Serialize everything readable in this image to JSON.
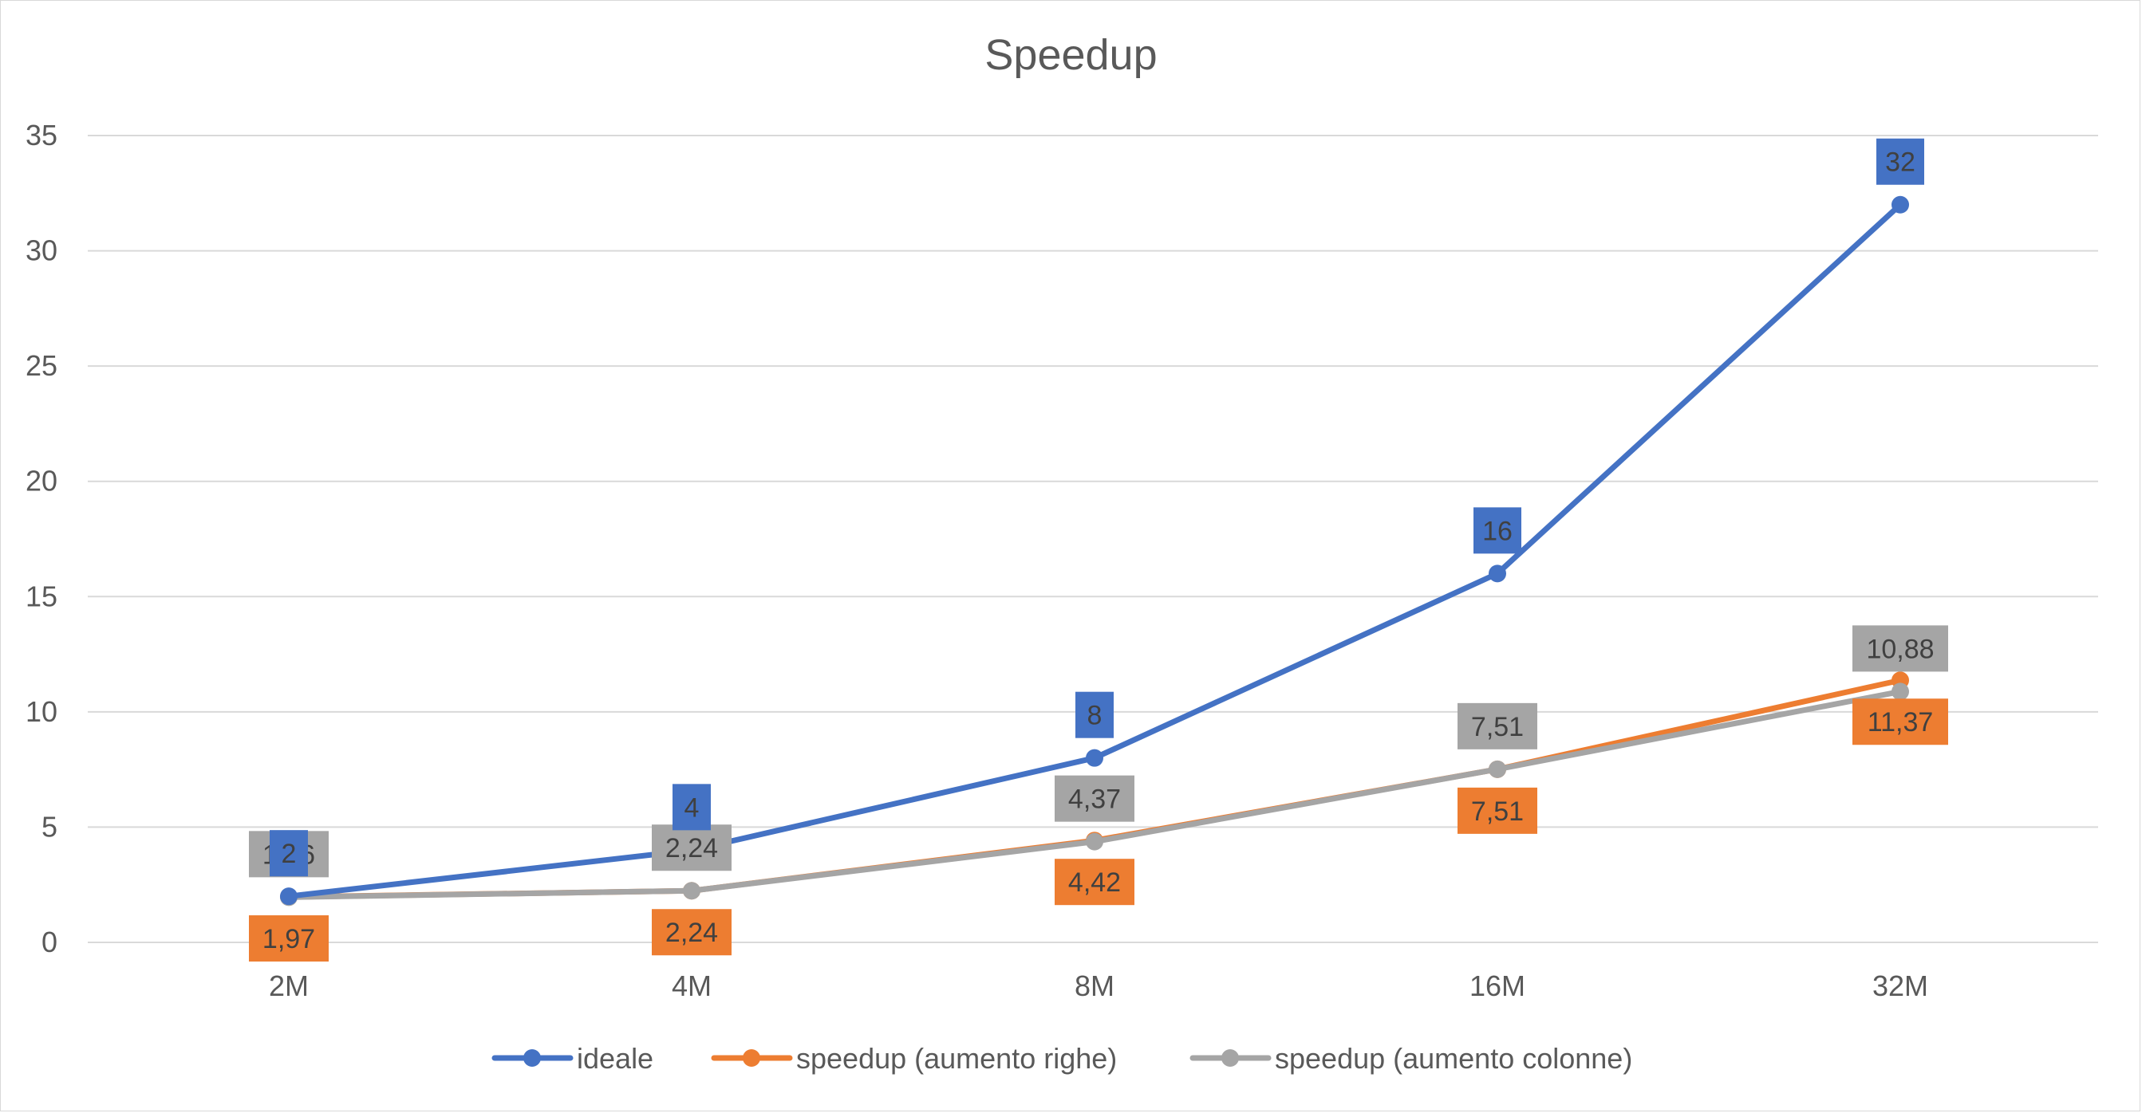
{
  "chart_data": {
    "type": "line",
    "title": "Speedup",
    "xlabel": "",
    "ylabel": "",
    "categories": [
      "2M",
      "4M",
      "8M",
      "16M",
      "32M"
    ],
    "ylim": [
      0,
      35
    ],
    "yticks": [
      0,
      5,
      10,
      15,
      20,
      25,
      30,
      35
    ],
    "grid": true,
    "legend_position": "bottom",
    "series": [
      {
        "name": "ideale",
        "color": "#4472C4",
        "values": [
          2,
          4,
          8,
          16,
          32
        ],
        "labels": [
          "2",
          "4",
          "8",
          "16",
          "32"
        ],
        "label_position": "above"
      },
      {
        "name": "speedup (aumento righe)",
        "color": "#ED7D31",
        "values": [
          1.97,
          2.24,
          4.42,
          7.51,
          11.37
        ],
        "labels": [
          "1,97",
          "2,24",
          "4,42",
          "7,51",
          "11,37"
        ],
        "label_position": "below"
      },
      {
        "name": "speedup (aumento colonne)",
        "color": "#A5A5A5",
        "values": [
          1.96,
          2.24,
          4.37,
          7.51,
          10.88
        ],
        "labels": [
          "1,96",
          "2,24",
          "4,37",
          "7,51",
          "10,88"
        ],
        "label_position": "above"
      }
    ]
  }
}
